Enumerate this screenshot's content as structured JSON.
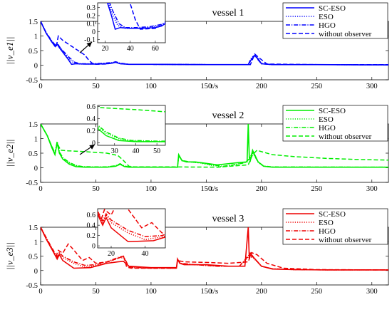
{
  "figure": {
    "panels": [
      {
        "title": "vessel 1",
        "ylabel": "||v_e1||",
        "xlabel": "t/s",
        "color": "#0000ff",
        "legend": [
          "SC-ESO",
          "ESO",
          "HGO",
          "without observer"
        ],
        "xticks": [
          "0",
          "50",
          "100",
          "150",
          "200",
          "250",
          "300"
        ],
        "yticks": [
          "1.5",
          "1",
          "0.5",
          "0",
          "-0.5"
        ],
        "inset_xticks": [
          "20",
          "40",
          "60"
        ],
        "inset_yticks": [
          "0.3",
          "0.2",
          "0.1",
          "0",
          "-0.1"
        ]
      },
      {
        "title": "vessel 2",
        "ylabel": "||v_e2||",
        "xlabel": "t/s",
        "color": "#00ee00",
        "legend": [
          "SC-ESO",
          "ESO",
          "HGO",
          "without observer"
        ],
        "xticks": [
          "0",
          "50",
          "100",
          "150",
          "200",
          "250",
          "300"
        ],
        "yticks": [
          "1.5",
          "1",
          "0.5",
          "0",
          "-0.5"
        ],
        "inset_xticks": [
          "30",
          "40",
          "50"
        ],
        "inset_yticks": [
          "0.6",
          "0.4",
          "0.2",
          "0"
        ]
      },
      {
        "title": "vessel 3",
        "ylabel": "||v_e3||",
        "xlabel": "t/s",
        "color": "#ee0000",
        "legend": [
          "SC-ESO",
          "ESO",
          "HGO",
          "without observer"
        ],
        "xticks": [
          "0",
          "50",
          "100",
          "150",
          "200",
          "250",
          "300"
        ],
        "yticks": [
          "1.5",
          "1",
          "0.5",
          "0",
          "-0.5"
        ],
        "inset_xticks": [
          "20",
          "40"
        ],
        "inset_yticks": [
          "0.6",
          "0.4",
          "0.2",
          "0"
        ]
      }
    ]
  },
  "chart_data": [
    {
      "type": "line",
      "title": "vessel 1",
      "xlabel": "t/s",
      "ylabel": "||v_e1||",
      "xlim": [
        0,
        315
      ],
      "ylim": [
        -0.5,
        1.5
      ],
      "color": "#0000ff",
      "series": [
        {
          "name": "SC-ESO",
          "dash": "solid",
          "x": [
            0,
            5,
            10,
            13,
            15,
            17,
            20,
            25,
            28,
            32,
            40,
            50,
            60,
            65,
            68,
            72,
            80,
            100,
            150,
            188,
            191,
            194,
            197,
            200,
            210,
            250,
            300,
            315
          ],
          "y": [
            1.5,
            1.1,
            0.8,
            0.65,
            0.72,
            0.6,
            0.45,
            0.2,
            0.03,
            0.05,
            0.04,
            0.04,
            0.05,
            0.07,
            0.1,
            0.05,
            0.03,
            0.03,
            0.02,
            0.02,
            0.2,
            0.33,
            0.22,
            0.05,
            0.02,
            0.02,
            0.01,
            0.01
          ]
        },
        {
          "name": "ESO",
          "dash": "dot",
          "x": [
            0,
            5,
            10,
            13,
            15,
            17,
            20,
            25,
            30,
            35,
            45,
            55,
            65,
            68,
            72,
            80,
            100,
            150,
            188,
            191,
            194,
            197,
            200,
            210,
            250,
            315
          ],
          "y": [
            1.5,
            1.1,
            0.82,
            0.68,
            0.74,
            0.62,
            0.48,
            0.24,
            0.08,
            0.04,
            0.04,
            0.05,
            0.08,
            0.11,
            0.06,
            0.03,
            0.03,
            0.02,
            0.02,
            0.22,
            0.32,
            0.2,
            0.06,
            0.02,
            0.02,
            0.01
          ]
        },
        {
          "name": "HGO",
          "dash": "dashdot",
          "x": [
            0,
            5,
            10,
            13,
            15,
            17,
            20,
            26,
            31,
            36,
            45,
            55,
            65,
            68,
            72,
            80,
            100,
            150,
            188,
            191,
            194,
            197,
            200,
            210,
            250,
            315
          ],
          "y": [
            1.5,
            1.12,
            0.84,
            0.7,
            0.76,
            0.64,
            0.5,
            0.26,
            0.1,
            0.05,
            0.05,
            0.06,
            0.09,
            0.12,
            0.07,
            0.03,
            0.03,
            0.02,
            0.02,
            0.26,
            0.34,
            0.18,
            0.05,
            0.02,
            0.02,
            0.01
          ]
        },
        {
          "name": "without observer",
          "dash": "dash",
          "x": [
            0,
            5,
            10,
            14,
            16,
            20,
            30,
            40,
            44,
            48,
            60,
            68,
            72,
            80,
            100,
            150,
            190,
            194,
            198,
            205,
            250,
            315
          ],
          "y": [
            1.5,
            1.1,
            0.8,
            0.6,
            1.0,
            0.85,
            0.6,
            0.35,
            0.15,
            0.03,
            0.04,
            0.1,
            0.05,
            0.03,
            0.03,
            0.02,
            0.02,
            0.38,
            0.25,
            0.04,
            0.02,
            0.02
          ]
        }
      ]
    },
    {
      "type": "line",
      "title": "vessel 2",
      "xlabel": "t/s",
      "ylabel": "||v_e2||",
      "xlim": [
        0,
        315
      ],
      "ylim": [
        -0.5,
        1.5
      ],
      "color": "#00ee00",
      "series": [
        {
          "name": "SC-ESO",
          "dash": "solid",
          "x": [
            0,
            6,
            10,
            13,
            15,
            17,
            20,
            26,
            32,
            40,
            50,
            60,
            68,
            72,
            76,
            80,
            100,
            124,
            125,
            128,
            132,
            140,
            150,
            160,
            170,
            180,
            187,
            188,
            189,
            190,
            192,
            197,
            202,
            210,
            250,
            315
          ],
          "y": [
            1.5,
            1.1,
            0.7,
            0.45,
            0.85,
            0.5,
            0.3,
            0.12,
            0.04,
            0.02,
            0.02,
            0.02,
            0.05,
            0.12,
            0.04,
            0.02,
            0.02,
            0.02,
            0.45,
            0.25,
            0.2,
            0.2,
            0.15,
            0.1,
            0.14,
            0.18,
            0.2,
            1.5,
            0.35,
            0.25,
            0.6,
            0.2,
            0.05,
            0.02,
            0.02,
            0.02
          ]
        },
        {
          "name": "ESO",
          "dash": "dot",
          "x": [
            0,
            6,
            10,
            13,
            15,
            17,
            20,
            26,
            32,
            38,
            50,
            60,
            68,
            72,
            76,
            80,
            100,
            124,
            125,
            128,
            135,
            145,
            155,
            165,
            175,
            185,
            189,
            192,
            197,
            202,
            210,
            315
          ],
          "y": [
            1.5,
            1.1,
            0.72,
            0.48,
            0.88,
            0.52,
            0.32,
            0.16,
            0.07,
            0.03,
            0.02,
            0.02,
            0.06,
            0.13,
            0.05,
            0.02,
            0.02,
            0.02,
            0.42,
            0.24,
            0.2,
            0.16,
            0.08,
            0.03,
            0.1,
            0.18,
            0.3,
            0.55,
            0.18,
            0.05,
            0.02,
            0.02
          ]
        },
        {
          "name": "HGO",
          "dash": "dashdot",
          "x": [
            0,
            6,
            10,
            13,
            15,
            17,
            20,
            26,
            32,
            38,
            50,
            60,
            68,
            72,
            76,
            80,
            100,
            124,
            125,
            128,
            135,
            145,
            155,
            165,
            175,
            185,
            189,
            192,
            197,
            202,
            210,
            315
          ],
          "y": [
            1.5,
            1.1,
            0.74,
            0.5,
            0.9,
            0.55,
            0.35,
            0.18,
            0.08,
            0.04,
            0.03,
            0.03,
            0.07,
            0.14,
            0.06,
            0.03,
            0.02,
            0.02,
            0.42,
            0.25,
            0.2,
            0.17,
            0.1,
            0.05,
            0.1,
            0.17,
            0.3,
            0.52,
            0.2,
            0.06,
            0.03,
            0.02
          ]
        },
        {
          "name": "without observer",
          "dash": "dash",
          "x": [
            0,
            6,
            10,
            13,
            15,
            18,
            25,
            40,
            60,
            70,
            75,
            80,
            85,
            120,
            160,
            188,
            192,
            196,
            200,
            210,
            230,
            260,
            290,
            315
          ],
          "y": [
            1.5,
            1.1,
            0.75,
            0.5,
            0.85,
            0.6,
            0.58,
            0.55,
            0.5,
            0.42,
            0.25,
            0.05,
            0.03,
            0.03,
            0.02,
            0.1,
            0.45,
            0.6,
            0.55,
            0.45,
            0.38,
            0.32,
            0.28,
            0.26
          ]
        }
      ]
    },
    {
      "type": "line",
      "title": "vessel 3",
      "xlabel": "t/s",
      "ylabel": "||v_e3||",
      "xlim": [
        0,
        315
      ],
      "ylim": [
        -0.5,
        1.5
      ],
      "color": "#ee0000",
      "series": [
        {
          "name": "SC-ESO",
          "dash": "solid",
          "x": [
            0,
            5,
            10,
            15,
            17,
            20,
            30,
            45,
            60,
            70,
            75,
            80,
            100,
            123,
            124,
            126,
            130,
            150,
            170,
            185,
            188,
            189,
            190,
            193,
            200,
            210,
            230,
            260,
            290,
            315
          ],
          "y": [
            1.5,
            1.1,
            0.75,
            0.4,
            0.55,
            0.35,
            0.08,
            0.1,
            0.25,
            0.3,
            0.32,
            0.15,
            0.1,
            0.1,
            0.4,
            0.25,
            0.2,
            0.2,
            0.15,
            0.15,
            1.5,
            0.4,
            0.6,
            0.45,
            0.15,
            0.05,
            0.03,
            0.02,
            0.02,
            0.02
          ]
        },
        {
          "name": "ESO",
          "dash": "dot",
          "x": [
            0,
            5,
            10,
            15,
            17,
            20,
            30,
            40,
            55,
            65,
            72,
            76,
            80,
            100,
            123,
            124,
            127,
            140,
            160,
            180,
            189,
            193,
            200,
            210,
            230,
            260,
            315
          ],
          "y": [
            1.5,
            1.12,
            0.78,
            0.45,
            0.6,
            0.45,
            0.25,
            0.12,
            0.2,
            0.35,
            0.45,
            0.42,
            0.1,
            0.08,
            0.08,
            0.35,
            0.24,
            0.2,
            0.15,
            0.15,
            0.5,
            0.42,
            0.15,
            0.06,
            0.03,
            0.02,
            0.02
          ]
        },
        {
          "name": "HGO",
          "dash": "dashdot",
          "x": [
            0,
            5,
            10,
            15,
            17,
            20,
            30,
            40,
            50,
            60,
            70,
            75,
            80,
            100,
            123,
            124,
            127,
            140,
            160,
            180,
            189,
            193,
            200,
            210,
            230,
            260,
            315
          ],
          "y": [
            1.5,
            1.15,
            0.8,
            0.48,
            0.62,
            0.5,
            0.3,
            0.18,
            0.2,
            0.3,
            0.45,
            0.5,
            0.12,
            0.08,
            0.08,
            0.38,
            0.25,
            0.2,
            0.15,
            0.15,
            0.55,
            0.45,
            0.15,
            0.06,
            0.03,
            0.02,
            0.02
          ]
        },
        {
          "name": "without observer",
          "dash": "dash",
          "x": [
            0,
            5,
            10,
            14,
            16,
            20,
            25,
            28,
            32,
            38,
            44,
            50,
            60,
            70,
            75,
            78,
            82,
            100,
            123,
            124,
            130,
            150,
            170,
            188,
            191,
            196,
            205,
            220,
            250,
            315
          ],
          "y": [
            1.5,
            1.1,
            0.75,
            0.5,
            0.7,
            0.6,
            0.92,
            0.8,
            0.62,
            0.35,
            0.45,
            0.25,
            0.3,
            0.42,
            0.5,
            0.12,
            0.08,
            0.08,
            0.08,
            0.35,
            0.3,
            0.28,
            0.25,
            0.3,
            0.62,
            0.55,
            0.25,
            0.08,
            0.03,
            0.02
          ]
        }
      ]
    }
  ]
}
